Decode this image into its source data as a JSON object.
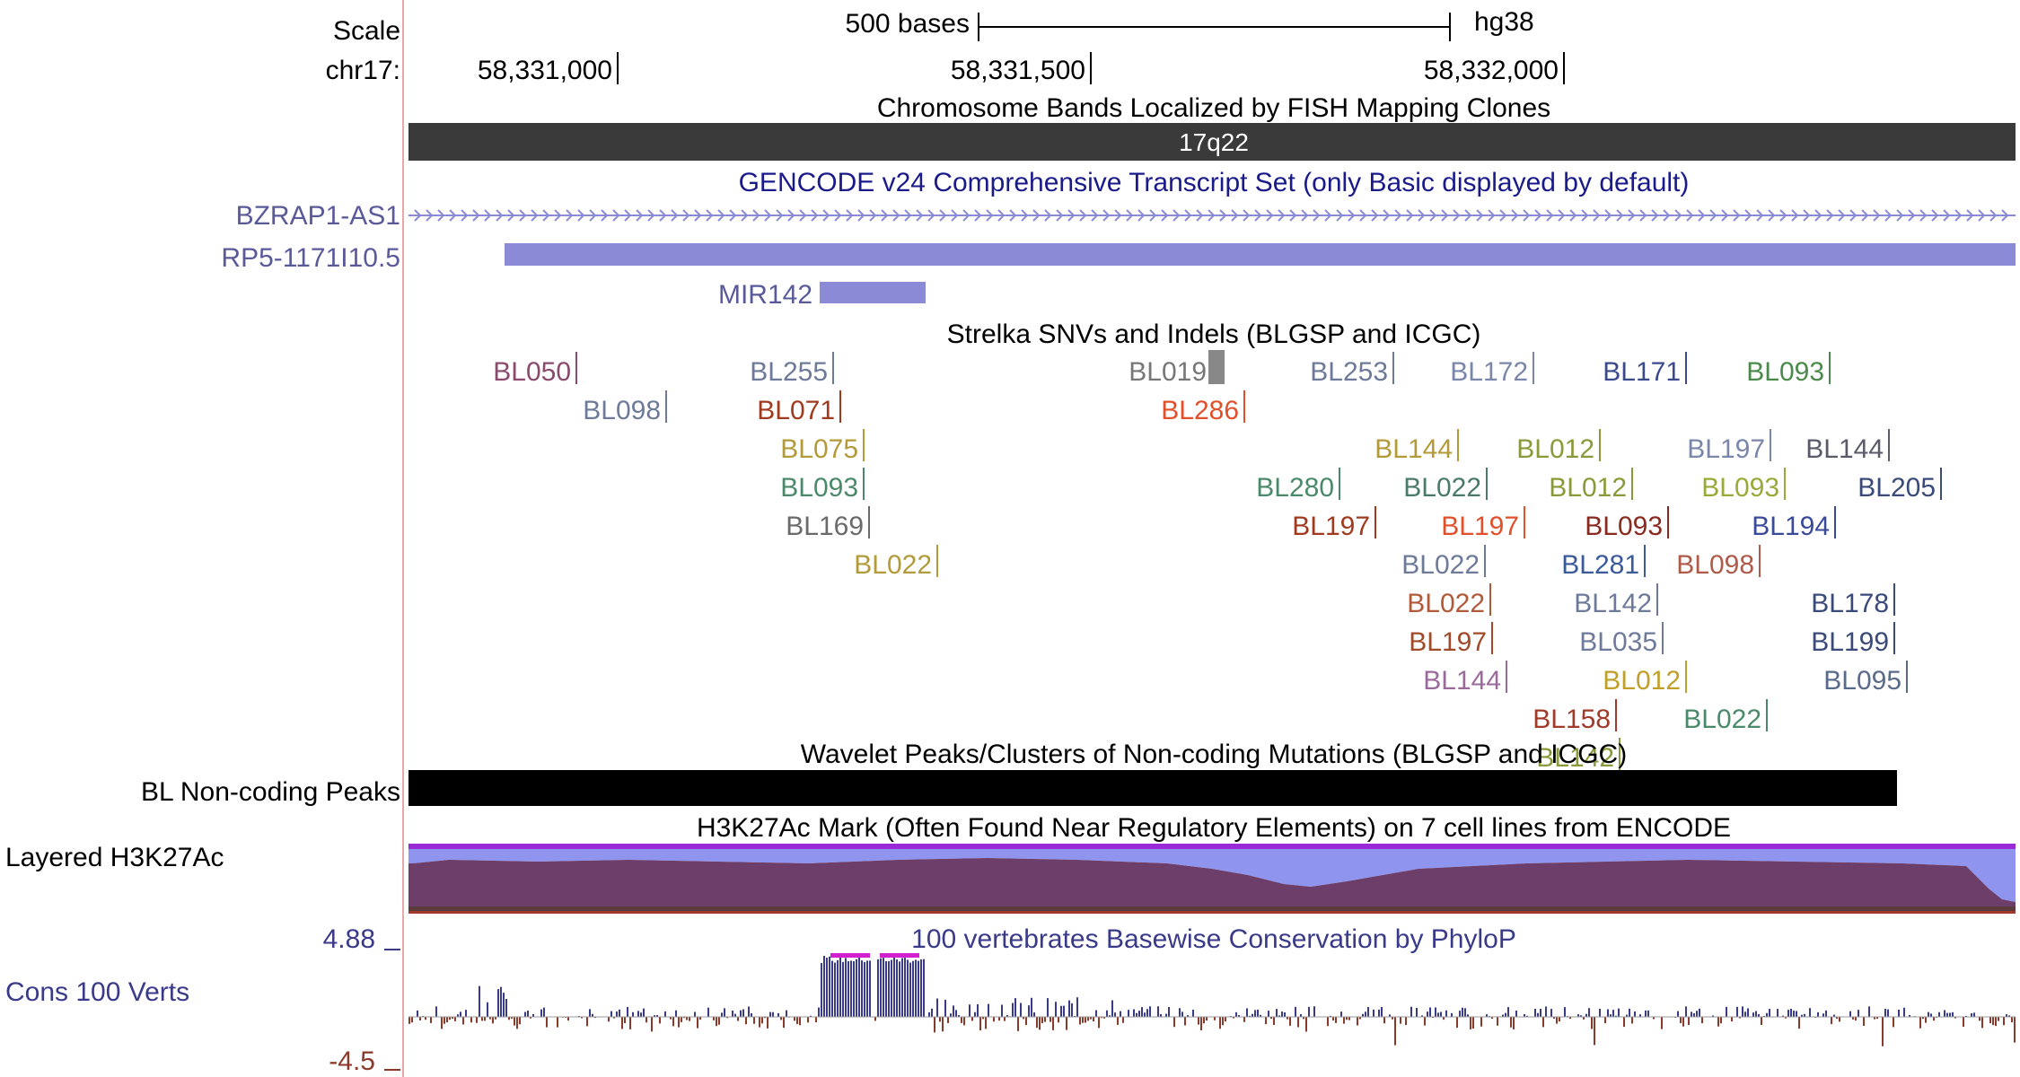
{
  "header": {
    "scale_label": "Scale",
    "scale_text": "500 bases",
    "assembly": "hg38",
    "chrom_label": "chr17:",
    "ticks": [
      "58,331,000",
      "58,331,500",
      "58,332,000"
    ]
  },
  "tracks": {
    "bands": {
      "title": "Chromosome Bands Localized by FISH Mapping Clones",
      "band": "17q22"
    },
    "gencode": {
      "title": "GENCODE v24 Comprehensive Transcript Set (only Basic displayed by default)",
      "genes": [
        "BZRAP1-AS1",
        "RP5-1171I10.5",
        "MIR142"
      ]
    },
    "strelka": {
      "title": "Strelka SNVs and Indels (BLGSP and ICGC)",
      "items": [
        {
          "label": "BL050",
          "color": "#8a4a6e"
        },
        {
          "label": "BL098",
          "color": "#6e7a9a"
        },
        {
          "label": "BL255",
          "color": "#6e7a9a"
        },
        {
          "label": "BL071",
          "color": "#a03a1e"
        },
        {
          "label": "BL075",
          "color": "#b39a3a"
        },
        {
          "label": "BL093",
          "color": "#4a8a6a"
        },
        {
          "label": "BL169",
          "color": "#6a6a6a"
        },
        {
          "label": "BL022",
          "color": "#b39a3a"
        },
        {
          "label": "BL019",
          "color": "#777777"
        },
        {
          "label": "BL286",
          "color": "#e0502a"
        },
        {
          "label": "BL253",
          "color": "#6e7a9a"
        },
        {
          "label": "BL172",
          "color": "#7a86aa"
        },
        {
          "label": "BL171",
          "color": "#3a4a8a"
        },
        {
          "label": "BL093",
          "color": "#4a8a4a"
        },
        {
          "label": "BL144",
          "color": "#b39a3a"
        },
        {
          "label": "BL012",
          "color": "#8a9a3a"
        },
        {
          "label": "BL197",
          "color": "#7a86aa"
        },
        {
          "label": "BL144",
          "color": "#5a5a6a"
        },
        {
          "label": "BL280",
          "color": "#4a8a6a"
        },
        {
          "label": "BL022",
          "color": "#4a7a6a"
        },
        {
          "label": "BL012",
          "color": "#8a9a3a"
        },
        {
          "label": "BL093",
          "color": "#9aaa3a"
        },
        {
          "label": "BL205",
          "color": "#3a4a7a"
        },
        {
          "label": "BL197",
          "color": "#a03a1e"
        },
        {
          "label": "BL197",
          "color": "#e0502a"
        },
        {
          "label": "BL093",
          "color": "#8a2a1e"
        },
        {
          "label": "BL194",
          "color": "#3a4a9a"
        },
        {
          "label": "BL022",
          "color": "#6e7a9a"
        },
        {
          "label": "BL281",
          "color": "#3a5a9a"
        },
        {
          "label": "BL098",
          "color": "#b05a4a"
        },
        {
          "label": "BL022",
          "color": "#b05a3a"
        },
        {
          "label": "BL142",
          "color": "#6e7a9a"
        },
        {
          "label": "BL178",
          "color": "#3a4a7a"
        },
        {
          "label": "BL197",
          "color": "#a04a2a"
        },
        {
          "label": "BL035",
          "color": "#6e7a9a"
        },
        {
          "label": "BL199",
          "color": "#3a4a7a"
        },
        {
          "label": "BL144",
          "color": "#9a6a9a"
        },
        {
          "label": "BL012",
          "color": "#c0a02a"
        },
        {
          "label": "BL095",
          "color": "#5a6a8a"
        },
        {
          "label": "BL158",
          "color": "#a03a2a"
        },
        {
          "label": "BL022",
          "color": "#4a8a6a"
        },
        {
          "label": "BL142",
          "color": "#8a9a3a"
        }
      ]
    },
    "peaks": {
      "title": "Wavelet Peaks/Clusters of Non-coding Mutations (BLGSP and ICGC)",
      "label": "BL Non-coding Peaks"
    },
    "h3k27ac": {
      "title": "H3K27Ac Mark (Often Found Near Regulatory Elements) on 7 cell lines from ENCODE",
      "label": "Layered H3K27Ac"
    },
    "cons": {
      "title": "100 vertebrates Basewise Conservation by PhyloP",
      "label": "Cons 100 Verts",
      "ymax": "4.88",
      "ymin": "-4.5"
    }
  },
  "colors": {
    "band_dark": "#3a3a3a",
    "gene": "#8a8ad6",
    "gene_text": "#5a5a9a",
    "gencode_title": "#1a1a8a",
    "separator": "#e8a8a8",
    "cons_pos": "#3a3a8a",
    "cons_neg": "#8a3a2a",
    "cons_title": "#3a3a8a",
    "magenta": "#d020d0"
  }
}
